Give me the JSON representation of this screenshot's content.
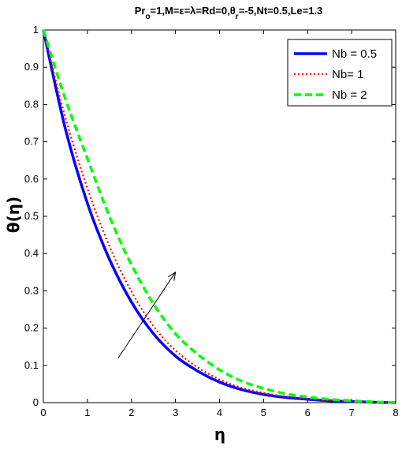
{
  "chart_data": {
    "type": "line",
    "title": "Pr",
    "title_parts": {
      "pr": "Pr",
      "pr_sub": "o",
      "mid": "=1,M=ε=λ=Rd=0,θ",
      "theta_sub": "r",
      "tail": "=-5,Nt=0.5,Le=1.3"
    },
    "xlabel": "η",
    "ylabel": "θ(η)",
    "xlim": [
      0,
      8
    ],
    "ylim": [
      0,
      1
    ],
    "xticks": [
      "0",
      "1",
      "2",
      "3",
      "4",
      "5",
      "6",
      "7",
      "8"
    ],
    "yticks": [
      "0",
      "0.1",
      "0.2",
      "0.3",
      "0.4",
      "0.5",
      "0.6",
      "0.7",
      "0.8",
      "0.9",
      "1"
    ],
    "grid": false,
    "legend_position": "top-right",
    "x": [
      0,
      0.5,
      1,
      1.5,
      2,
      2.5,
      3,
      3.5,
      4,
      4.5,
      5,
      5.5,
      6,
      6.5,
      7,
      7.5,
      8
    ],
    "series": [
      {
        "name": "Nb = 0.5",
        "color": "#0000ff",
        "dash": "solid",
        "values": [
          1.0,
          0.735,
          0.535,
          0.385,
          0.27,
          0.185,
          0.125,
          0.085,
          0.055,
          0.035,
          0.022,
          0.014,
          0.009,
          0.005,
          0.003,
          0.001,
          0.0
        ]
      },
      {
        "name": "Nb= 1",
        "color": "#ff0000",
        "dash": "dotted",
        "values": [
          1.0,
          0.765,
          0.575,
          0.42,
          0.298,
          0.205,
          0.14,
          0.095,
          0.062,
          0.04,
          0.026,
          0.016,
          0.01,
          0.006,
          0.003,
          0.001,
          0.0
        ]
      },
      {
        "name": "Nb = 2",
        "color": "#00ff00",
        "dash": "dashed",
        "values": [
          1.0,
          0.815,
          0.655,
          0.5,
          0.37,
          0.265,
          0.185,
          0.13,
          0.088,
          0.058,
          0.038,
          0.024,
          0.015,
          0.009,
          0.005,
          0.002,
          0.0
        ]
      }
    ],
    "annotation": {
      "type": "arrow",
      "from": [
        1.7,
        0.12
      ],
      "to": [
        3.0,
        0.35
      ]
    }
  }
}
